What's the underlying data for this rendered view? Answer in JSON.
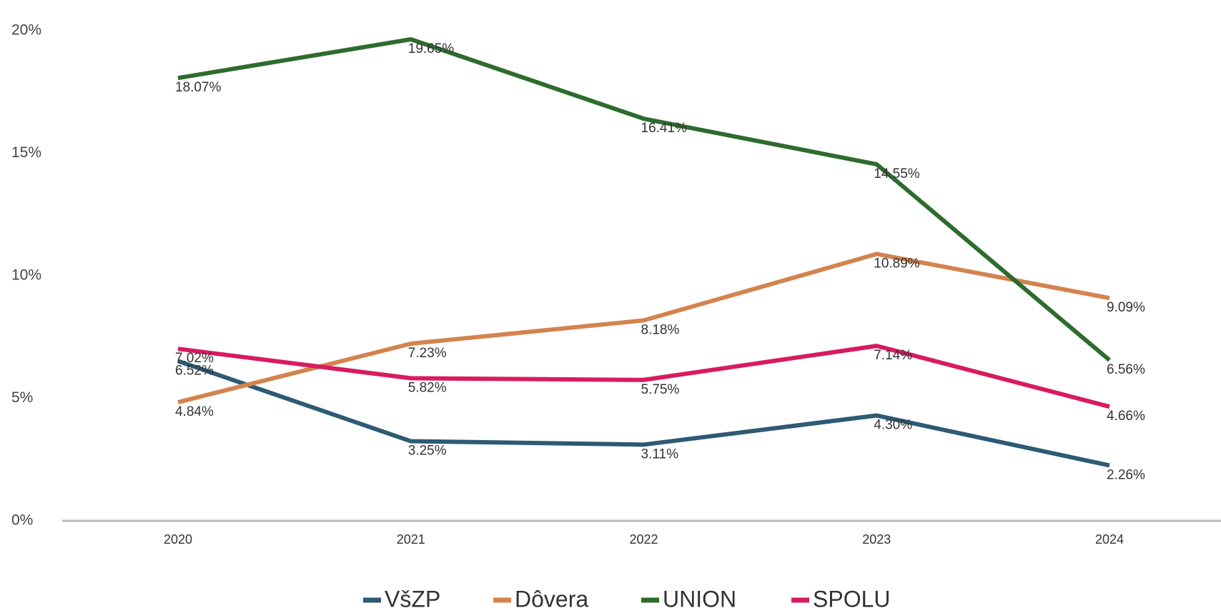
{
  "chart_data": {
    "type": "line",
    "categories": [
      "2020",
      "2021",
      "2022",
      "2023",
      "2024"
    ],
    "series": [
      {
        "name": "VšZP",
        "color": "#2e5a73",
        "values": [
          6.52,
          3.25,
          3.11,
          4.3,
          2.26
        ],
        "value_labels": [
          "6.52%",
          "3.25%",
          "3.11%",
          "4.30%",
          "2.26%"
        ]
      },
      {
        "name": "Dôvera",
        "color": "#d4834f",
        "values": [
          4.84,
          7.23,
          8.18,
          10.89,
          9.09
        ],
        "value_labels": [
          "4.84%",
          "7.23%",
          "8.18%",
          "10.89%",
          "9.09%"
        ]
      },
      {
        "name": "UNION",
        "color": "#2e6b2e",
        "values": [
          18.07,
          19.65,
          16.41,
          14.55,
          6.56
        ],
        "value_labels": [
          "18.07%",
          "19.65%",
          "16.41%",
          "14.55%",
          "6.56%"
        ]
      },
      {
        "name": "SPOLU",
        "color": "#d81b60",
        "values": [
          7.02,
          5.82,
          5.75,
          7.14,
          4.66
        ],
        "value_labels": [
          "7.02%",
          "5.82%",
          "5.75%",
          "7.14%",
          "4.66%"
        ]
      }
    ],
    "ylim": [
      0,
      20
    ],
    "yticks": [
      {
        "value": 0,
        "label": "0%"
      },
      {
        "value": 5,
        "label": "5%"
      },
      {
        "value": 10,
        "label": "10%"
      },
      {
        "value": 15,
        "label": "15%"
      },
      {
        "value": 20,
        "label": "20%"
      }
    ],
    "legend": "bottom"
  }
}
